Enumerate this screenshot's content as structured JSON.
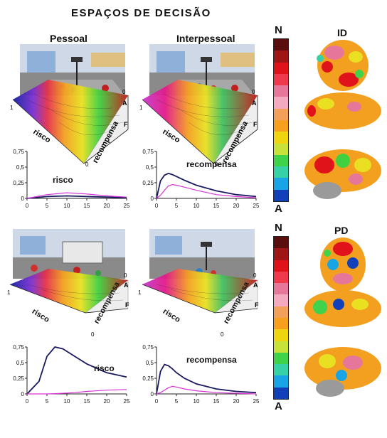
{
  "title": "ESPAÇOS DE DECISÃO",
  "columns": {
    "pessoal": "Pessoal",
    "interpessoal": "Interpessoal"
  },
  "axes3d": {
    "risco": "risco",
    "recompensa": "recompensa",
    "A": "A",
    "F": "F",
    "zero": "0",
    "one": "1"
  },
  "scale": {
    "top": "N",
    "bottom": "A",
    "colors": [
      "#5a0e0e",
      "#a01616",
      "#e0121a",
      "#ee3a4a",
      "#e6779a",
      "#f3a9bf",
      "#f3a15a",
      "#f7a020",
      "#eed510",
      "#c8e23a",
      "#3ed34a",
      "#36d2a6",
      "#19a4e6",
      "#1140b8"
    ]
  },
  "brain_panels": [
    {
      "label": "ID"
    },
    {
      "label": "PD"
    }
  ],
  "colors": {
    "dark": "#1a1a60",
    "magenta": "#d632d6"
  },
  "chart_data": [
    {
      "type": "line",
      "panel": "ID-Pessoal",
      "x": [
        0,
        5,
        10,
        15,
        20,
        25
      ],
      "xticks": [
        "0",
        "5",
        "10",
        "15",
        "20",
        "25"
      ],
      "yticks": [
        "0",
        "0,25",
        "0,5",
        "0,75"
      ],
      "ylim": [
        0,
        0.75
      ],
      "annotation": "risco",
      "series": [
        {
          "values": [
            0,
            0.03,
            0.04,
            0.03,
            0.02,
            0.01
          ]
        },
        {
          "values": [
            0,
            0.06,
            0.09,
            0.07,
            0.04,
            0.02
          ]
        }
      ]
    },
    {
      "type": "line",
      "panel": "ID-Interpessoal",
      "x": [
        0,
        1,
        2,
        3,
        4,
        5,
        7,
        10,
        15,
        20,
        25
      ],
      "xticks": [
        "0",
        "5",
        "10",
        "15",
        "20",
        "25"
      ],
      "yticks": [
        "0",
        "0,25",
        "0,5",
        "0,75"
      ],
      "ylim": [
        0,
        0.75
      ],
      "annotation": "recompensa",
      "series": [
        {
          "values": [
            0,
            0.28,
            0.37,
            0.4,
            0.38,
            0.35,
            0.29,
            0.21,
            0.12,
            0.06,
            0.03
          ]
        },
        {
          "values": [
            0,
            0.05,
            0.13,
            0.2,
            0.22,
            0.21,
            0.18,
            0.13,
            0.06,
            0.03,
            0.01
          ]
        }
      ]
    },
    {
      "type": "line",
      "panel": "PD-Pessoal",
      "x": [
        0,
        3,
        5,
        7,
        9,
        12,
        15,
        20,
        25
      ],
      "xticks": [
        "0",
        "5",
        "10",
        "15",
        "20",
        "25"
      ],
      "yticks": [
        "0",
        "0,25",
        "0,5",
        "0,75"
      ],
      "ylim": [
        0,
        0.75
      ],
      "annotation": "risco",
      "series": [
        {
          "values": [
            0,
            0.2,
            0.6,
            0.75,
            0.72,
            0.6,
            0.48,
            0.34,
            0.27
          ]
        },
        {
          "values": [
            0,
            0,
            0,
            0.005,
            0.01,
            0.02,
            0.04,
            0.06,
            0.07
          ]
        }
      ]
    },
    {
      "type": "line",
      "panel": "PD-Interpessoal",
      "x": [
        0,
        1,
        2,
        3,
        4,
        5,
        7,
        10,
        15,
        20,
        25
      ],
      "xticks": [
        "0",
        "5",
        "10",
        "15",
        "20",
        "25"
      ],
      "yticks": [
        "0",
        "0,25",
        "0,5",
        "0,75"
      ],
      "ylim": [
        0,
        0.75
      ],
      "annotation": "recompensa",
      "series": [
        {
          "values": [
            0,
            0.36,
            0.47,
            0.45,
            0.4,
            0.34,
            0.25,
            0.16,
            0.08,
            0.04,
            0.02
          ]
        },
        {
          "values": [
            0,
            0.02,
            0.06,
            0.1,
            0.12,
            0.11,
            0.08,
            0.05,
            0.02,
            0.01,
            0
          ]
        }
      ]
    }
  ]
}
